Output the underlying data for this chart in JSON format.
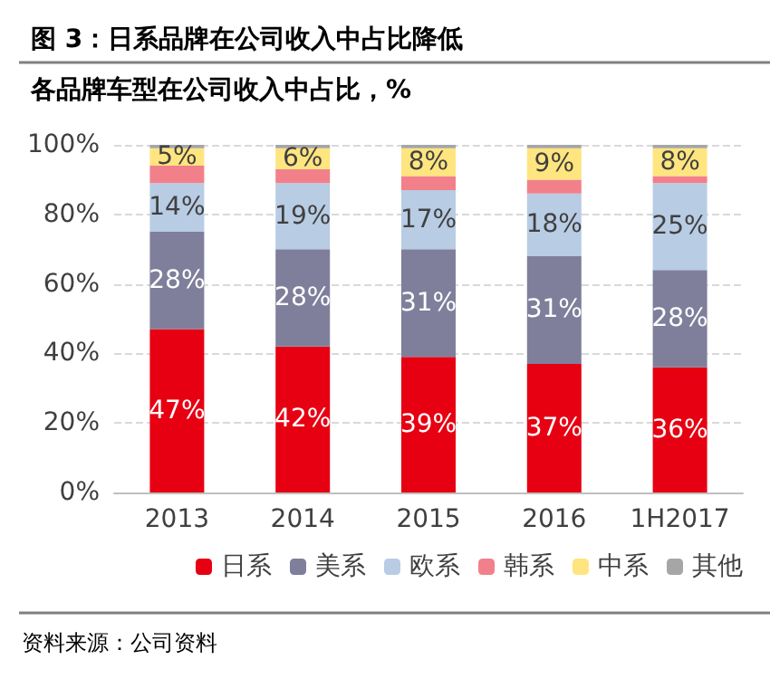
{
  "chart_data": {
    "type": "bar",
    "stacked": true,
    "title": "图 3：日系品牌在公司收入中占比降低",
    "subtitle": "各品牌车型在公司收入中占比，%",
    "categories": [
      "2013",
      "2014",
      "2015",
      "2016",
      "1H2017"
    ],
    "series": [
      {
        "name": "日系",
        "color": "#e60012",
        "values": [
          47,
          42,
          39,
          37,
          36
        ],
        "value_labels": [
          "47%",
          "42%",
          "39%",
          "37%",
          "36%"
        ]
      },
      {
        "name": "美系",
        "color": "#7f7f9b",
        "values": [
          28,
          28,
          31,
          31,
          28
        ],
        "value_labels": [
          "28%",
          "28%",
          "31%",
          "31%",
          "28%"
        ]
      },
      {
        "name": "欧系",
        "color": "#b8cce4",
        "values": [
          14,
          19,
          17,
          18,
          25
        ],
        "value_labels": [
          "14%",
          "19%",
          "17%",
          "18%",
          "25%"
        ]
      },
      {
        "name": "韩系",
        "color": "#f2808a",
        "values": [
          5,
          4,
          4,
          4,
          2
        ]
      },
      {
        "name": "中系",
        "color": "#ffe57f",
        "values": [
          5,
          6,
          8,
          9,
          8
        ],
        "value_labels": [
          "5%",
          "6%",
          "8%",
          "9%",
          "8%"
        ]
      },
      {
        "name": "其他",
        "color": "#a6a6a6",
        "values": [
          1,
          1,
          1,
          1,
          1
        ]
      }
    ],
    "ylim": [
      0,
      100
    ],
    "yticks": [
      {
        "value": 0,
        "label": "0%"
      },
      {
        "value": 20,
        "label": "20%"
      },
      {
        "value": 40,
        "label": "40%"
      },
      {
        "value": 60,
        "label": "60%"
      },
      {
        "value": 80,
        "label": "80%"
      },
      {
        "value": 100,
        "label": "100%"
      }
    ],
    "grid": "y",
    "legend": "bottom",
    "annotations": [
      "资料来源：公司资料"
    ]
  }
}
